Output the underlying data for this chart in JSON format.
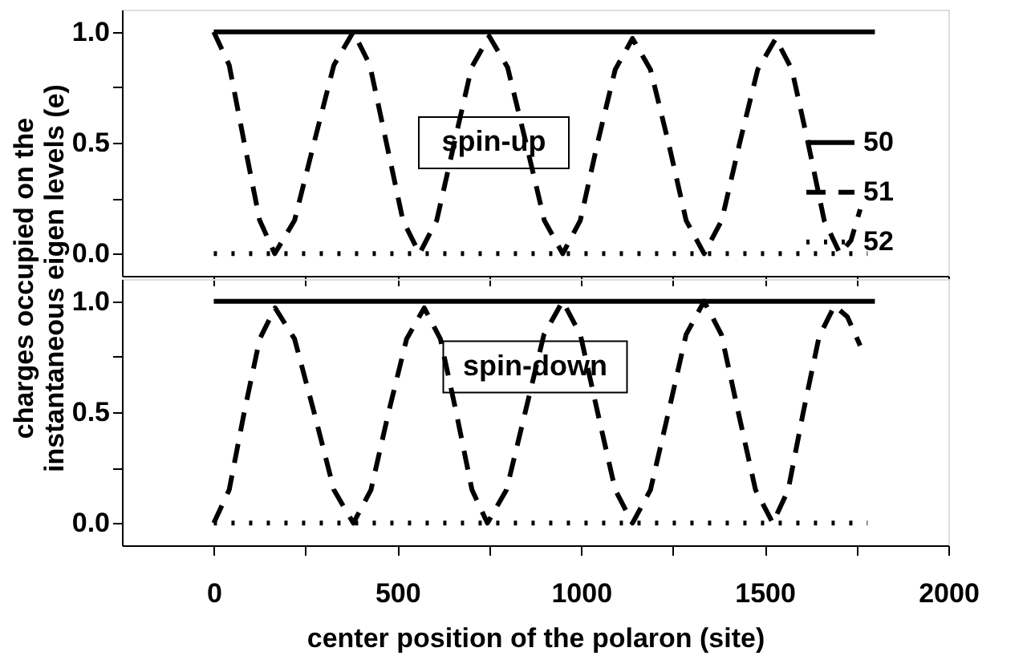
{
  "chart_data": [
    {
      "type": "line",
      "ylabel": "charges occupied on the instantaneous eigen levels (e)",
      "annotations": [
        "spin-up"
      ],
      "xlim": [
        -250,
        2000
      ],
      "xticks": [
        0,
        {
          "value": 250,
          "label": null
        },
        500,
        {
          "value": 750,
          "label": null
        },
        1000,
        {
          "value": 1250,
          "label": null
        },
        1500,
        {
          "value": 1750,
          "label": null
        },
        2000
      ],
      "ylim": [
        -0.1,
        1.1
      ],
      "yticks": [
        {
          "value": 0,
          "label": "0.0"
        },
        {
          "value": 0.25,
          "label": null
        },
        {
          "value": 0.5,
          "label": "0.5"
        },
        {
          "value": 0.75,
          "label": null
        },
        {
          "value": 1,
          "label": "1.0"
        }
      ],
      "tick_labels": "y",
      "legend": "bottom right",
      "series": [
        {
          "name": "50",
          "color": "#000000",
          "line_style": "solid",
          "x": [
            0,
            1800
          ],
          "values": [
            1,
            1
          ]
        },
        {
          "name": "51",
          "color": "#000000",
          "line_style": "dashed",
          "x": [
            0,
            42,
            83,
            125,
            166,
            220,
            273,
            327,
            380,
            425,
            470,
            515,
            560,
            607,
            655,
            702,
            750,
            800,
            850,
            900,
            950,
            998,
            1045,
            1093,
            1140,
            1189,
            1238,
            1286,
            1335,
            1383,
            1432,
            1481,
            1530,
            1574,
            1618,
            1662,
            1705,
            1735,
            1760
          ],
          "values": [
            1,
            0.85,
            0.5,
            0.15,
            0,
            0.15,
            0.5,
            0.85,
            1,
            0.85,
            0.5,
            0.15,
            0,
            0.15,
            0.5,
            0.84,
            0.98,
            0.84,
            0.5,
            0.15,
            0,
            0.15,
            0.5,
            0.83,
            0.97,
            0.83,
            0.5,
            0.15,
            0,
            0.15,
            0.5,
            0.83,
            0.97,
            0.83,
            0.5,
            0.15,
            0,
            0.06,
            0.2
          ]
        },
        {
          "name": "52",
          "color": "#000000",
          "line_style": "dotted",
          "x": [
            0,
            1780
          ],
          "values": [
            0,
            0
          ]
        }
      ]
    },
    {
      "type": "line",
      "xlabel": "center position of the polaron (site)",
      "annotations": [
        "spin-down"
      ],
      "xlim": [
        -250,
        2000
      ],
      "xticks": [
        0,
        {
          "value": 250,
          "label": null
        },
        500,
        {
          "value": 750,
          "label": null
        },
        1000,
        {
          "value": 1250,
          "label": null
        },
        1500,
        {
          "value": 1750,
          "label": null
        },
        2000
      ],
      "ylim": [
        -0.1,
        1.1
      ],
      "yticks": [
        {
          "value": 0,
          "label": "0.0"
        },
        {
          "value": 0.25,
          "label": null
        },
        {
          "value": 0.5,
          "label": "0.5"
        },
        {
          "value": 0.75,
          "label": null
        },
        {
          "value": 1,
          "label": "1.0"
        }
      ],
      "legend": "right",
      "series": [
        {
          "name": "50",
          "color": "#000000",
          "line_style": "solid",
          "x": [
            0,
            1800
          ],
          "values": [
            1,
            1
          ]
        },
        {
          "name": "51",
          "color": "#000000",
          "line_style": "dashed",
          "x": [
            0,
            42,
            83,
            125,
            167,
            220,
            273,
            327,
            380,
            428,
            476,
            525,
            573,
            617,
            660,
            703,
            745,
            797,
            848,
            899,
            950,
            998,
            1045,
            1093,
            1140,
            1189,
            1238,
            1286,
            1335,
            1382,
            1428,
            1475,
            1522,
            1564,
            1605,
            1648,
            1690,
            1725,
            1760
          ],
          "values": [
            0,
            0.15,
            0.5,
            0.83,
            0.97,
            0.83,
            0.5,
            0.15,
            0,
            0.15,
            0.5,
            0.83,
            0.97,
            0.83,
            0.5,
            0.15,
            0,
            0.15,
            0.5,
            0.85,
            1,
            0.85,
            0.5,
            0.15,
            0,
            0.15,
            0.5,
            0.85,
            1,
            0.85,
            0.5,
            0.15,
            0,
            0.15,
            0.5,
            0.84,
            0.98,
            0.93,
            0.8
          ]
        },
        {
          "name": "52",
          "color": "#000000",
          "line_style": "dotted",
          "x": [
            0,
            1780
          ],
          "values": [
            0,
            0
          ]
        }
      ]
    }
  ]
}
